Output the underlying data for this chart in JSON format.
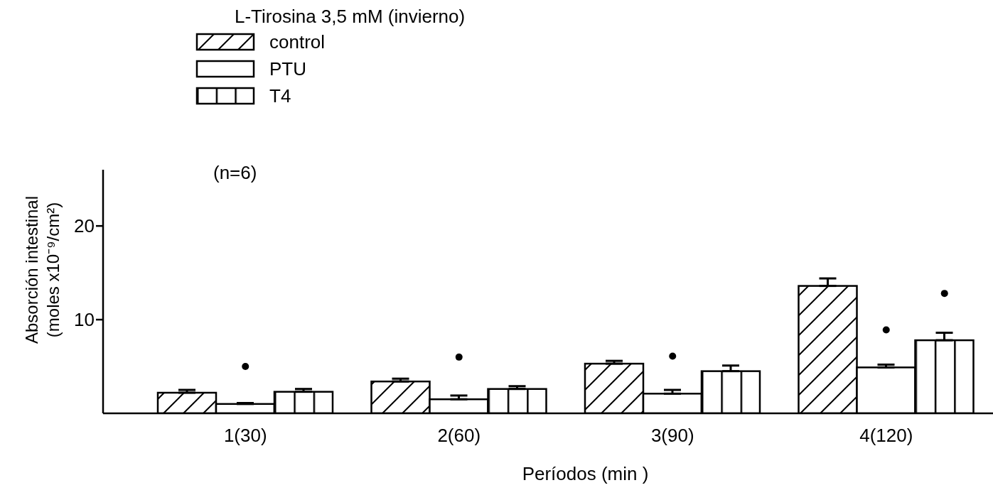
{
  "chart_data": {
    "type": "bar",
    "title": "L-Tirosina 3,5 mM (invierno)",
    "xlabel": "Períodos (min )",
    "ylabel": "Absorción intestinal\n(moles x10⁻⁹/cm²)",
    "categories": [
      "1(30)",
      "2(60)",
      "3(90)",
      "4(120)"
    ],
    "series": [
      {
        "name": "control",
        "color": "#000000",
        "values": [
          2.2,
          3.4,
          5.3,
          13.6
        ],
        "errors": [
          [
            2.2,
            2.5
          ],
          [
            3.4,
            3.7
          ],
          [
            5.3,
            5.6
          ],
          [
            13.6,
            14.4
          ]
        ]
      },
      {
        "name": "PTU",
        "color": "#000000",
        "values": [
          1.0,
          1.5,
          2.1,
          4.9
        ],
        "errors": [
          [
            1.0,
            1.1
          ],
          [
            1.5,
            1.9
          ],
          [
            2.1,
            2.5
          ],
          [
            4.9,
            5.2
          ]
        ]
      },
      {
        "type": "scatter",
        "color": "#000000",
        "x": [
          "1(30)",
          "2(60)",
          "3(90)",
          "4(120)"
        ],
        "values": [
          5.0,
          6.0,
          6.1,
          8.9
        ]
      },
      {
        "name": "T4",
        "color": "#000000",
        "values": [
          2.3,
          2.6,
          4.5,
          7.8
        ],
        "errors": [
          [
            2.3,
            2.6
          ],
          [
            2.6,
            2.9
          ],
          [
            4.5,
            5.1
          ],
          [
            7.8,
            8.6
          ]
        ]
      },
      {
        "type": "scatter",
        "color": "#000000",
        "x": [
          "4(120)"
        ],
        "values": [
          12.8
        ]
      }
    ],
    "annotations": [
      "(n=6)"
    ],
    "ylim": [
      0,
      26
    ],
    "yticks": [
      10,
      20
    ],
    "grid": false,
    "legend": "top left"
  }
}
